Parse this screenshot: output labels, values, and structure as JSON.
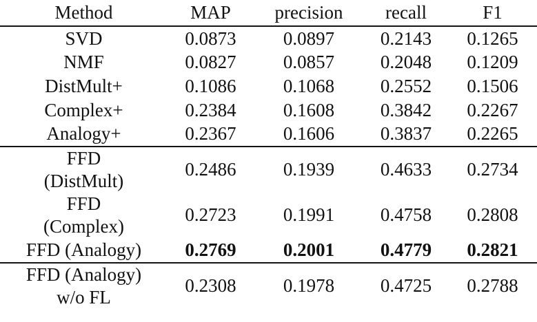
{
  "columns": [
    "Method",
    "MAP",
    "precision",
    "recall",
    "F1"
  ],
  "groups": [
    {
      "rows": [
        {
          "method": [
            "SVD"
          ],
          "values": [
            "0.0873",
            "0.0897",
            "0.2143",
            "0.1265"
          ],
          "bold": false
        },
        {
          "method": [
            "NMF"
          ],
          "values": [
            "0.0827",
            "0.0857",
            "0.2048",
            "0.1209"
          ],
          "bold": false
        },
        {
          "method": [
            "DistMult+"
          ],
          "values": [
            "0.1086",
            "0.1068",
            "0.2552",
            "0.1506"
          ],
          "bold": false
        },
        {
          "method": [
            "Complex+"
          ],
          "values": [
            "0.2384",
            "0.1608",
            "0.3842",
            "0.2267"
          ],
          "bold": false
        },
        {
          "method": [
            "Analogy+"
          ],
          "values": [
            "0.2367",
            "0.1606",
            "0.3837",
            "0.2265"
          ],
          "bold": false
        }
      ]
    },
    {
      "rows": [
        {
          "method": [
            "FFD",
            "(DistMult)"
          ],
          "values": [
            "0.2486",
            "0.1939",
            "0.4633",
            "0.2734"
          ],
          "bold": false
        },
        {
          "method": [
            "FFD",
            "(Complex)"
          ],
          "values": [
            "0.2723",
            "0.1991",
            "0.4758",
            "0.2808"
          ],
          "bold": false
        },
        {
          "method": [
            "FFD (Analogy)"
          ],
          "values": [
            "0.2769",
            "0.2001",
            "0.4779",
            "0.2821"
          ],
          "bold": true
        }
      ]
    },
    {
      "rows": [
        {
          "method": [
            "FFD (Analogy)",
            "w/o FL"
          ],
          "values": [
            "0.2308",
            "0.1978",
            "0.4725",
            "0.2788"
          ],
          "bold": false
        }
      ]
    }
  ]
}
